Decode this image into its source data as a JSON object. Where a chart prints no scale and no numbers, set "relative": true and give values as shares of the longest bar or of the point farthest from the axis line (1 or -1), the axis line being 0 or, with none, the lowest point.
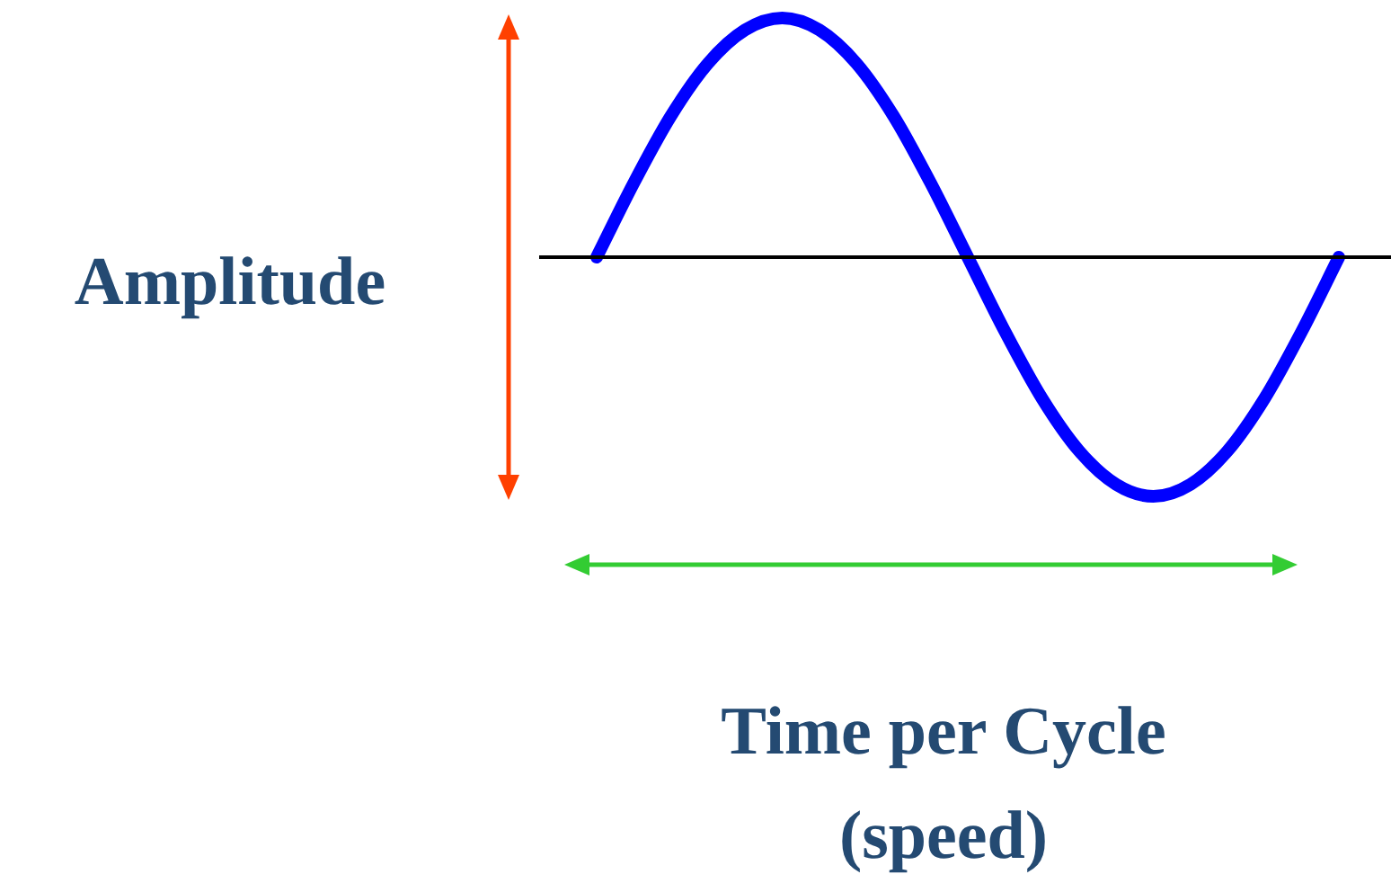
{
  "chart_data": {
    "type": "line",
    "relative": true,
    "ylabel": "Amplitude",
    "xlabel": "Time per Cycle\n(speed)",
    "color": "#0000ff",
    "marker": "none",
    "categories": [
      null,
      null,
      null,
      null,
      null,
      null,
      null,
      null,
      null,
      null,
      null,
      null,
      null,
      null,
      null,
      null,
      null,
      null,
      null,
      null,
      null
    ],
    "values": [
      0,
      0.31,
      0.59,
      0.81,
      0.95,
      1,
      0.95,
      0.81,
      0.59,
      0.31,
      0,
      -0.31,
      -0.59,
      -0.81,
      -0.95,
      -1,
      -0.95,
      -0.81,
      -0.59,
      -0.31,
      0
    ]
  }
}
